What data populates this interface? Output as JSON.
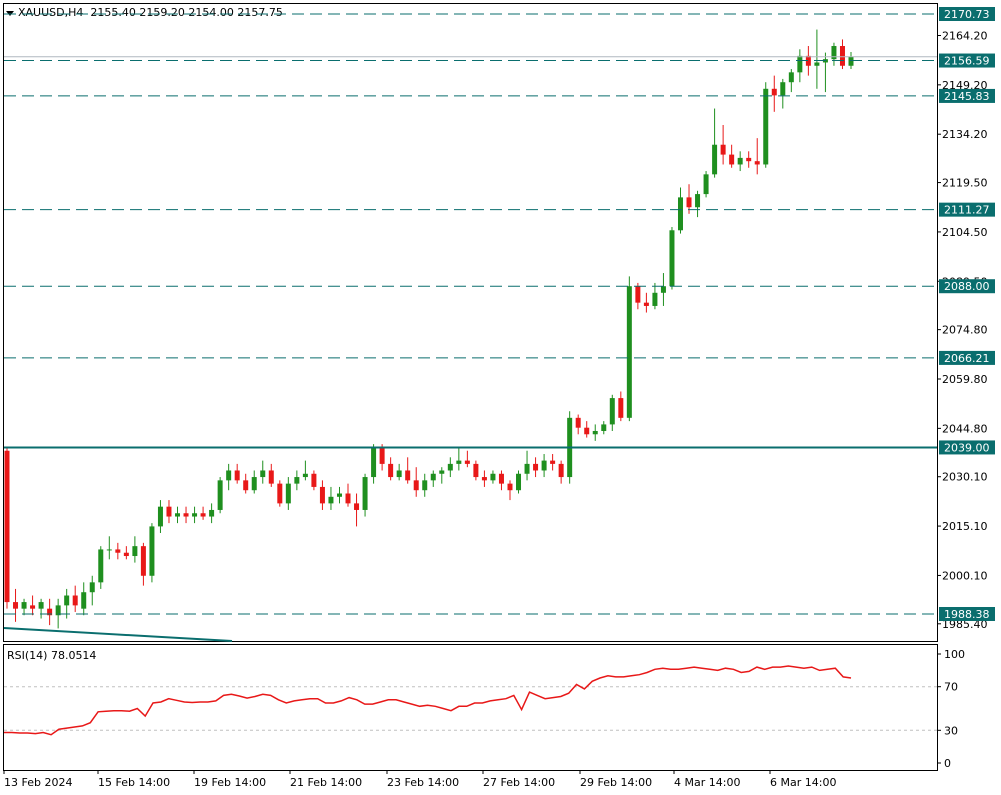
{
  "header": {
    "symbol_timeframe": "XAUUSD,H4",
    "ohlc": "2155.40 2159.20 2154.00 2157.75"
  },
  "rsi_header": {
    "label": "RSI(14) 78.0514"
  },
  "colors": {
    "bull": "#1f8f1f",
    "bear": "#e81818",
    "level_line": "#0a6e6e",
    "rsi_line": "#e81818",
    "label_bg": "#0a6e6e"
  },
  "chart_data": [
    {
      "type": "candlestick",
      "title": "XAUUSD,H4",
      "ylim": [
        1981.0,
        2175.0
      ],
      "y_ticks": [
        "2164.20",
        "2149.20",
        "2134.20",
        "2119.50",
        "2104.50",
        "2089.50",
        "2074.80",
        "2059.80",
        "2044.80",
        "2030.10",
        "2015.10",
        "2000.10",
        "1985.40"
      ],
      "x_ticks": [
        "13 Feb 2024",
        "15 Feb 14:00",
        "19 Feb 14:00",
        "21 Feb 14:00",
        "23 Feb 14:00",
        "27 Feb 14:00",
        "29 Feb 14:00",
        "4 Mar 14:00",
        "6 Mar 14:00"
      ],
      "levels": [
        {
          "value": 2170.73,
          "label": "2170.73",
          "style": "dashed"
        },
        {
          "value": 2156.59,
          "label": "2156.59",
          "style": "dashed"
        },
        {
          "value": 2145.83,
          "label": "2145.83",
          "style": "dashed"
        },
        {
          "value": 2111.27,
          "label": "2111.27",
          "style": "dashed"
        },
        {
          "value": 2088.0,
          "label": "2088.00",
          "style": "dashed"
        },
        {
          "value": 2066.21,
          "label": "2066.21",
          "style": "dashed"
        },
        {
          "value": 2039.0,
          "label": "2039.00",
          "style": "solid"
        },
        {
          "value": 1988.38,
          "label": "1988.38",
          "style": "dashed"
        }
      ],
      "current_price": 2157.75,
      "candles": [
        [
          2038,
          2039,
          1990,
          1992
        ],
        [
          1992,
          1996,
          1986,
          1990
        ],
        [
          1990,
          1993,
          1988,
          1992
        ],
        [
          1991,
          1994,
          1988,
          1990
        ],
        [
          1990,
          1993,
          1987,
          1992
        ],
        [
          1990,
          1993,
          1985,
          1988
        ],
        [
          1988,
          1993,
          1984,
          1991
        ],
        [
          1991,
          1996,
          1987,
          1994
        ],
        [
          1994,
          1997,
          1989,
          1991
        ],
        [
          1990,
          1998,
          1988,
          1995
        ],
        [
          1995,
          2000,
          1991,
          1998
        ],
        [
          1998,
          2009,
          1996,
          2008
        ],
        [
          2008,
          2012,
          2005,
          2008
        ],
        [
          2008,
          2010,
          2005,
          2007
        ],
        [
          2007,
          2009,
          2005,
          2006
        ],
        [
          2006,
          2012,
          2004,
          2009
        ],
        [
          2009,
          2010,
          1997,
          2000
        ],
        [
          2000,
          2016,
          1998,
          2015
        ],
        [
          2015,
          2023,
          2013,
          2021
        ],
        [
          2021,
          2023,
          2016,
          2018
        ],
        [
          2018,
          2021,
          2016,
          2019
        ],
        [
          2019,
          2021,
          2016,
          2018
        ],
        [
          2018,
          2021,
          2016,
          2019
        ],
        [
          2019,
          2021,
          2017,
          2018
        ],
        [
          2018,
          2022,
          2016,
          2020
        ],
        [
          2020,
          2030,
          2019,
          2029
        ],
        [
          2029,
          2034,
          2026,
          2032
        ],
        [
          2032,
          2034,
          2028,
          2029
        ],
        [
          2029,
          2031,
          2025,
          2026
        ],
        [
          2026,
          2032,
          2025,
          2030
        ],
        [
          2030,
          2035,
          2028,
          2032
        ],
        [
          2032,
          2034,
          2027,
          2028
        ],
        [
          2028,
          2029,
          2021,
          2022
        ],
        [
          2022,
          2030,
          2020,
          2028
        ],
        [
          2028,
          2032,
          2026,
          2030
        ],
        [
          2030,
          2035,
          2029,
          2031
        ],
        [
          2031,
          2032,
          2026,
          2027
        ],
        [
          2027,
          2029,
          2020,
          2022
        ],
        [
          2022,
          2027,
          2020,
          2024
        ],
        [
          2024,
          2027,
          2022,
          2025
        ],
        [
          2025,
          2028,
          2021,
          2022
        ],
        [
          2022,
          2025,
          2015,
          2020
        ],
        [
          2020,
          2031,
          2018,
          2030
        ],
        [
          2030,
          2040,
          2028,
          2039
        ],
        [
          2039,
          2040,
          2032,
          2034
        ],
        [
          2034,
          2036,
          2029,
          2030
        ],
        [
          2030,
          2034,
          2029,
          2032
        ],
        [
          2032,
          2036,
          2028,
          2029
        ],
        [
          2029,
          2033,
          2024,
          2026
        ],
        [
          2026,
          2031,
          2024,
          2029
        ],
        [
          2029,
          2032,
          2027,
          2031
        ],
        [
          2031,
          2033,
          2028,
          2032
        ],
        [
          2032,
          2036,
          2030,
          2034
        ],
        [
          2034,
          2039,
          2032,
          2035
        ],
        [
          2035,
          2038,
          2033,
          2034
        ],
        [
          2034,
          2035,
          2029,
          2030
        ],
        [
          2030,
          2032,
          2027,
          2029
        ],
        [
          2029,
          2032,
          2028,
          2031
        ],
        [
          2031,
          2032,
          2026,
          2028
        ],
        [
          2028,
          2029,
          2023,
          2026
        ],
        [
          2026,
          2032,
          2025,
          2031
        ],
        [
          2031,
          2038,
          2029,
          2034
        ],
        [
          2034,
          2036,
          2030,
          2032
        ],
        [
          2032,
          2037,
          2030,
          2035
        ],
        [
          2035,
          2037,
          2032,
          2034
        ],
        [
          2034,
          2035,
          2028,
          2030
        ],
        [
          2030,
          2050,
          2028,
          2048
        ],
        [
          2048,
          2049,
          2043,
          2045
        ],
        [
          2045,
          2047,
          2042,
          2043
        ],
        [
          2043,
          2046,
          2041,
          2044
        ],
        [
          2044,
          2047,
          2043,
          2046
        ],
        [
          2046,
          2055,
          2044,
          2054
        ],
        [
          2054,
          2056,
          2047,
          2048
        ],
        [
          2048,
          2091,
          2047,
          2088
        ],
        [
          2088,
          2089,
          2081,
          2083
        ],
        [
          2083,
          2086,
          2080,
          2082
        ],
        [
          2082,
          2089,
          2081,
          2086
        ],
        [
          2086,
          2092,
          2082,
          2088
        ],
        [
          2088,
          2106,
          2087,
          2105
        ],
        [
          2105,
          2118,
          2104,
          2115
        ],
        [
          2115,
          2119,
          2110,
          2112
        ],
        [
          2112,
          2117,
          2109,
          2116
        ],
        [
          2116,
          2123,
          2115,
          2122
        ],
        [
          2122,
          2142,
          2121,
          2131
        ],
        [
          2131,
          2137,
          2125,
          2128
        ],
        [
          2128,
          2131,
          2124,
          2125
        ],
        [
          2125,
          2129,
          2123,
          2127
        ],
        [
          2127,
          2129,
          2124,
          2126
        ],
        [
          2126,
          2133,
          2122,
          2125
        ],
        [
          2125,
          2150,
          2124,
          2148
        ],
        [
          2148,
          2152,
          2141,
          2146
        ],
        [
          2146,
          2151,
          2142,
          2150
        ],
        [
          2150,
          2154,
          2147,
          2153
        ],
        [
          2153,
          2160,
          2150,
          2158
        ],
        [
          2158,
          2161,
          2152,
          2155
        ],
        [
          2155,
          2166,
          2148,
          2156
        ],
        [
          2156,
          2159,
          2147,
          2157
        ],
        [
          2157,
          2162,
          2155,
          2161
        ],
        [
          2161,
          2163,
          2154,
          2155
        ],
        [
          2155,
          2159.2,
          2154,
          2157.75
        ]
      ]
    },
    {
      "type": "line",
      "title": "RSI(14) 78.0514",
      "ylim": [
        0,
        100
      ],
      "y_ticks": [
        "100",
        "70",
        "30",
        "0"
      ],
      "levels": [
        70,
        30
      ],
      "values": [
        28,
        28,
        27.5,
        27.5,
        27,
        28,
        26,
        31,
        32,
        33,
        34,
        37,
        47,
        47.5,
        48,
        48,
        47.5,
        50,
        43,
        55,
        56,
        59,
        57.5,
        56,
        55.5,
        56,
        56,
        57,
        62,
        63,
        61.5,
        59.5,
        61,
        63,
        62,
        58,
        55,
        57,
        58,
        59,
        59,
        55,
        55,
        57,
        60,
        58,
        54,
        54,
        56,
        58,
        58,
        56,
        54,
        52,
        53,
        52,
        50,
        48,
        52,
        52,
        55,
        55,
        57,
        58,
        59,
        62,
        49,
        65,
        62,
        59,
        60,
        61,
        64,
        72,
        68,
        75,
        78,
        80,
        79,
        79,
        80,
        81,
        83,
        86,
        87,
        86,
        86,
        87,
        88,
        87,
        86,
        85,
        87,
        86,
        83,
        84,
        88,
        86,
        88,
        88,
        89,
        88,
        87,
        88,
        85,
        86,
        87,
        79,
        78
      ]
    }
  ]
}
